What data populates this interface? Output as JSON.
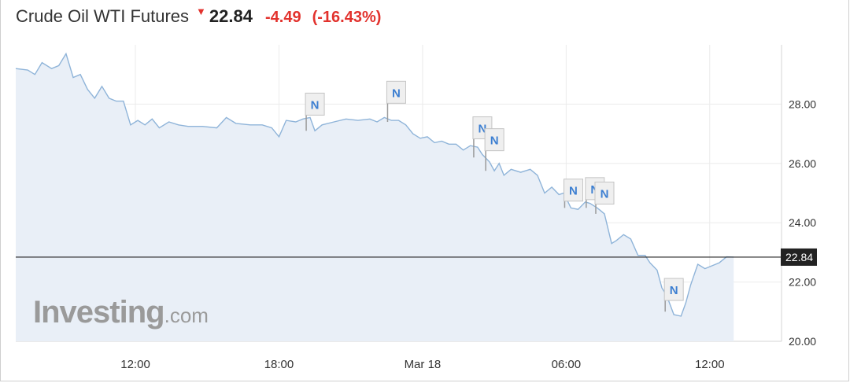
{
  "header": {
    "title": "Crude Oil WTI Futures",
    "price": "22.84",
    "change": "-4.49",
    "change_pct": "(-16.43%)",
    "direction_icon": "triangle-down-icon"
  },
  "watermark": {
    "brand": "Investing",
    "suffix": ".com"
  },
  "colors": {
    "line": "#8fb4d9",
    "area": "#e9eff7",
    "down": "#e2322d",
    "last_price_bg": "#222222",
    "news_marker_text": "#3d7fd1"
  },
  "chart_data": {
    "type": "area",
    "x_tick_labels": [
      "12:00",
      "18:00",
      "Mar 18",
      "06:00",
      "12:00"
    ],
    "x_ticks": [
      8,
      14,
      20,
      26,
      32
    ],
    "xlim": [
      3,
      35
    ],
    "ylim": [
      20,
      30
    ],
    "y_ticks": [
      "28.00",
      "26.00",
      "24.00",
      "22.00",
      "20.00"
    ],
    "last_price_label": "22.84",
    "last_price": 22.84,
    "grid": true,
    "series": [
      {
        "values": [
          [
            3.0,
            29.2
          ],
          [
            3.5,
            29.15
          ],
          [
            3.8,
            29.0
          ],
          [
            4.1,
            29.4
          ],
          [
            4.5,
            29.2
          ],
          [
            4.8,
            29.3
          ],
          [
            5.1,
            29.7
          ],
          [
            5.4,
            28.9
          ],
          [
            5.7,
            29.0
          ],
          [
            6.0,
            28.5
          ],
          [
            6.3,
            28.2
          ],
          [
            6.6,
            28.6
          ],
          [
            6.9,
            28.2
          ],
          [
            7.2,
            28.1
          ],
          [
            7.5,
            28.1
          ],
          [
            7.8,
            27.3
          ],
          [
            8.1,
            27.45
          ],
          [
            8.4,
            27.3
          ],
          [
            8.7,
            27.5
          ],
          [
            9.0,
            27.2
          ],
          [
            9.4,
            27.4
          ],
          [
            9.8,
            27.3
          ],
          [
            10.2,
            27.25
          ],
          [
            10.8,
            27.25
          ],
          [
            11.4,
            27.2
          ],
          [
            11.8,
            27.55
          ],
          [
            12.2,
            27.35
          ],
          [
            12.8,
            27.3
          ],
          [
            13.3,
            27.3
          ],
          [
            13.7,
            27.2
          ],
          [
            14.0,
            26.9
          ],
          [
            14.3,
            27.45
          ],
          [
            14.7,
            27.4
          ],
          [
            15.0,
            27.5
          ],
          [
            15.3,
            27.55
          ],
          [
            15.5,
            27.1
          ],
          [
            15.8,
            27.3
          ],
          [
            16.3,
            27.4
          ],
          [
            16.8,
            27.5
          ],
          [
            17.3,
            27.45
          ],
          [
            17.8,
            27.5
          ],
          [
            18.1,
            27.4
          ],
          [
            18.4,
            27.55
          ],
          [
            18.7,
            27.45
          ],
          [
            19.0,
            27.45
          ],
          [
            19.3,
            27.3
          ],
          [
            19.6,
            27.0
          ],
          [
            19.9,
            26.85
          ],
          [
            20.2,
            26.9
          ],
          [
            20.5,
            26.7
          ],
          [
            20.8,
            26.75
          ],
          [
            21.1,
            26.65
          ],
          [
            21.4,
            26.65
          ],
          [
            21.7,
            26.45
          ],
          [
            22.0,
            26.6
          ],
          [
            22.3,
            26.55
          ],
          [
            22.5,
            26.3
          ],
          [
            22.8,
            26.05
          ],
          [
            23.0,
            25.75
          ],
          [
            23.2,
            26.0
          ],
          [
            23.4,
            25.6
          ],
          [
            23.7,
            25.8
          ],
          [
            24.1,
            25.7
          ],
          [
            24.5,
            25.8
          ],
          [
            24.8,
            25.6
          ],
          [
            25.1,
            25.0
          ],
          [
            25.4,
            25.2
          ],
          [
            25.7,
            24.95
          ],
          [
            25.9,
            25.0
          ],
          [
            26.2,
            24.5
          ],
          [
            26.5,
            24.45
          ],
          [
            26.8,
            24.7
          ],
          [
            27.0,
            24.65
          ],
          [
            27.3,
            24.5
          ],
          [
            27.6,
            24.3
          ],
          [
            27.9,
            23.3
          ],
          [
            28.1,
            23.4
          ],
          [
            28.4,
            23.6
          ],
          [
            28.7,
            23.45
          ],
          [
            29.0,
            22.9
          ],
          [
            29.3,
            22.9
          ],
          [
            29.5,
            22.65
          ],
          [
            29.8,
            22.4
          ],
          [
            30.0,
            21.8
          ],
          [
            30.2,
            21.55
          ],
          [
            30.5,
            20.9
          ],
          [
            30.8,
            20.85
          ],
          [
            31.0,
            21.3
          ],
          [
            31.2,
            21.9
          ],
          [
            31.5,
            22.6
          ],
          [
            31.8,
            22.45
          ],
          [
            32.1,
            22.55
          ],
          [
            32.4,
            22.65
          ],
          [
            32.7,
            22.85
          ],
          [
            33.0,
            22.84
          ]
        ]
      }
    ],
    "annotations": [
      {
        "label": "N",
        "x": 15.5,
        "y": 27.1,
        "box_y": 28.0
      },
      {
        "label": "N",
        "x": 18.9,
        "y": 27.4,
        "box_y": 28.4
      },
      {
        "label": "N",
        "x": 22.5,
        "y": 26.2,
        "box_y": 27.2
      },
      {
        "label": "N",
        "x": 23.0,
        "y": 25.75,
        "box_y": 26.8
      },
      {
        "label": "N",
        "x": 26.3,
        "y": 24.5,
        "box_y": 25.1
      },
      {
        "label": "N",
        "x": 27.2,
        "y": 24.5,
        "box_y": 25.15
      },
      {
        "label": "N",
        "x": 27.6,
        "y": 24.3,
        "box_y": 25.0
      },
      {
        "label": "N",
        "x": 30.5,
        "y": 21.0,
        "box_y": 21.75
      }
    ]
  }
}
